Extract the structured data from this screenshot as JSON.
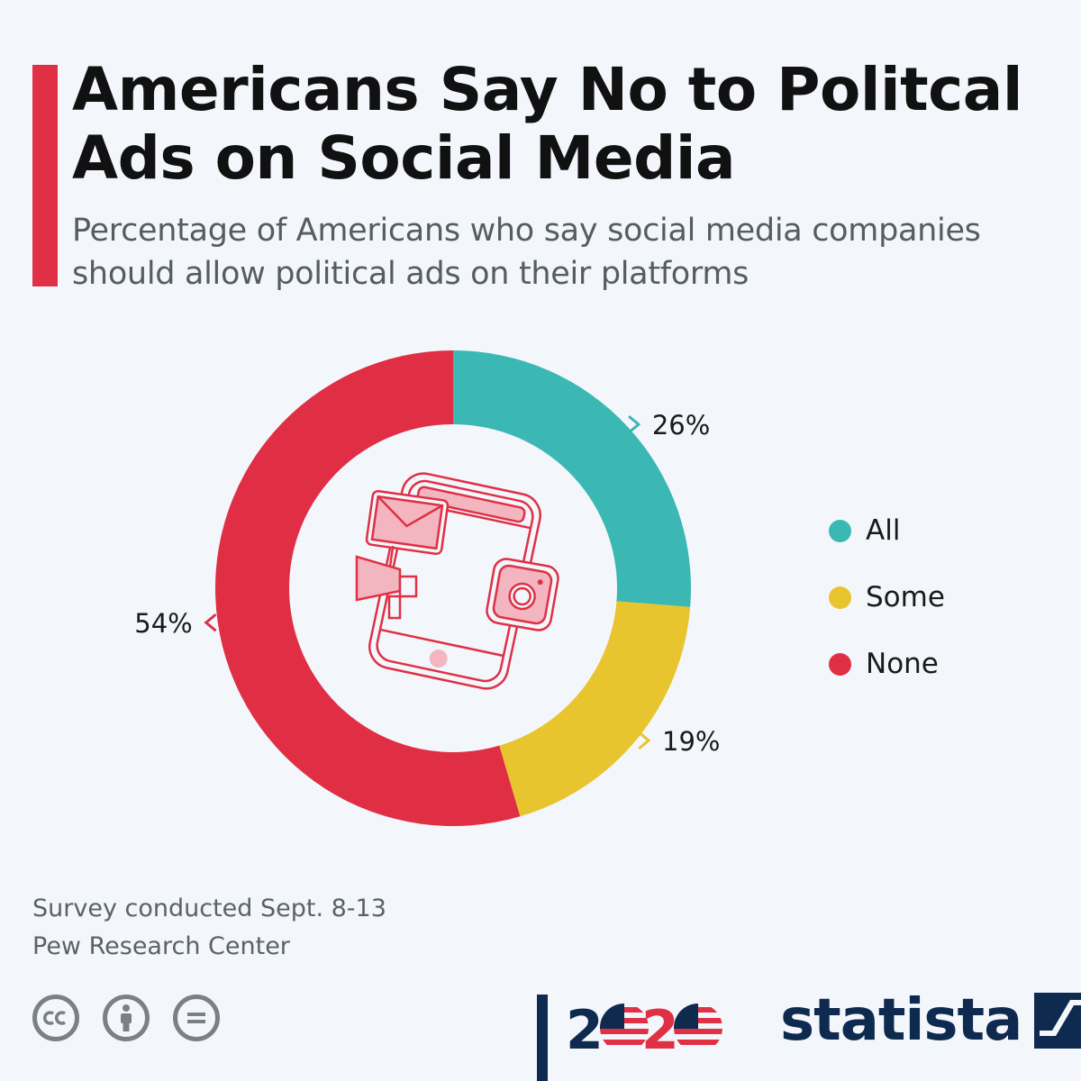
{
  "title": "Americans Say No to Politcal Ads on Social Media",
  "subtitle": "Percentage of Americans who say social media companies should allow political ads on their platforms",
  "chart_data": {
    "type": "pie",
    "variant": "donut",
    "categories": [
      "All",
      "Some",
      "None"
    ],
    "values": [
      26,
      19,
      54
    ],
    "value_labels": [
      "26%",
      "19%",
      "54%"
    ],
    "colors": [
      "#3bb8b4",
      "#e8c52e",
      "#e02e45"
    ],
    "legend_position": "right",
    "title": "Americans Say No to Politcal Ads on Social Media",
    "subtitle": "Percentage of Americans who say social media companies should allow political ads on their platforms"
  },
  "legend": [
    {
      "label": "All",
      "color": "#3bb8b4"
    },
    {
      "label": "Some",
      "color": "#e8c52e"
    },
    {
      "label": "None",
      "color": "#e02e45"
    }
  ],
  "footnote": {
    "line1": "Survey conducted Sept. 8-13",
    "line2": "Pew Research Center"
  },
  "license_icons": [
    "cc-icon",
    "attribution-icon",
    "no-derivatives-icon"
  ],
  "brand": {
    "year_logo": "2020",
    "name": "statista",
    "accent_color": "#e03045",
    "navy": "#0e2a4f"
  },
  "center_icon": "smartphone-social-icon"
}
